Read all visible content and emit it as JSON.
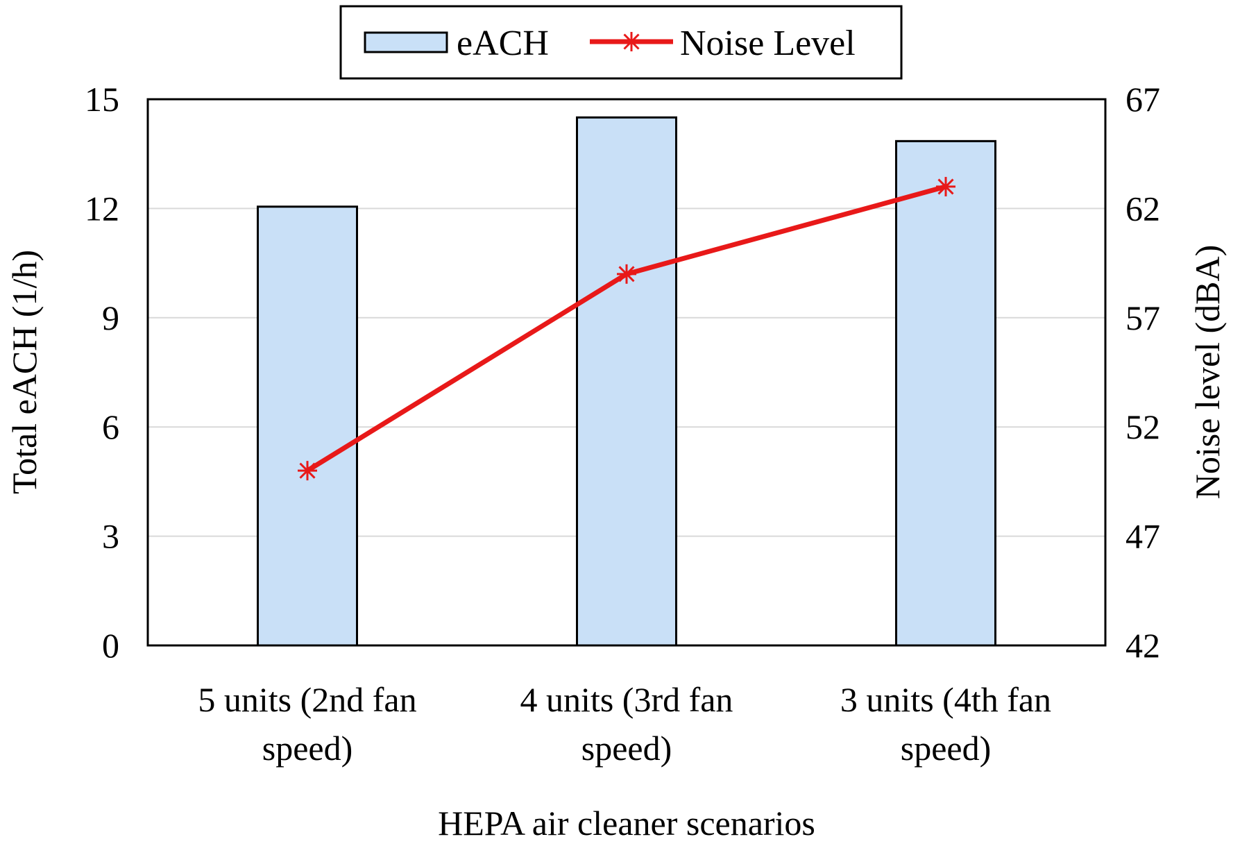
{
  "chart_data": {
    "type": "bar",
    "categories": [
      [
        "5 units (2nd fan",
        "speed)"
      ],
      [
        "4 units (3rd fan",
        "speed)"
      ],
      [
        "3 units (4th fan",
        "speed)"
      ]
    ],
    "series": [
      {
        "name": "eACH",
        "type": "bar",
        "axis": "left",
        "values": [
          12.05,
          14.5,
          13.85
        ],
        "color": "#c9e0f7"
      },
      {
        "name": "Noise Level",
        "type": "line",
        "axis": "right",
        "values": [
          50.0,
          59.0,
          63.0
        ],
        "color": "#e81919"
      }
    ],
    "xlabel": "HEPA air cleaner scenarios",
    "ylabel": "Total eACH (1/h)",
    "y2label": "Noise level (dBA)",
    "ylim": [
      0,
      15
    ],
    "y2lim": [
      42,
      67
    ],
    "yticks": [
      "0",
      "3",
      "6",
      "9",
      "12",
      "15"
    ],
    "y2ticks": [
      "42",
      "47",
      "52",
      "57",
      "62",
      "67"
    ],
    "grid": true,
    "legend": "top-center"
  }
}
